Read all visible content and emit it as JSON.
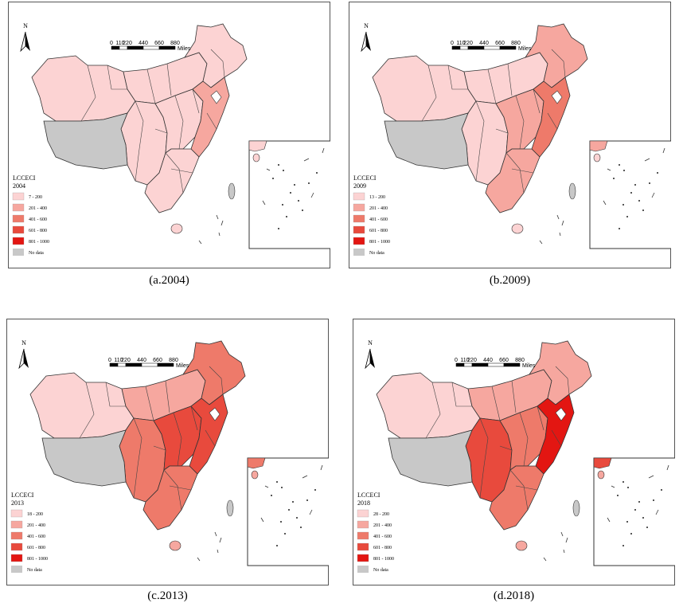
{
  "legend": {
    "title": "LCCECI",
    "classes": [
      {
        "color": "#fcd3d3"
      },
      {
        "label": "201 - 400",
        "color": "#f6a79f"
      },
      {
        "label": "401 - 600",
        "color": "#ee7a6a"
      },
      {
        "label": "601 - 800",
        "color": "#e84a3d"
      },
      {
        "label": "801 - 1000",
        "color": "#e31612"
      }
    ],
    "no_data_label": "No data",
    "no_data_color": "#c8c8c8"
  },
  "compass_label": "N",
  "scale_bar": {
    "ticks": [
      "0",
      "110",
      "220",
      "440",
      "660",
      "880"
    ],
    "unit": "Miles"
  },
  "panels": [
    {
      "year": "2004",
      "first_class_label": "7 - 200",
      "caption": "(a.2004)",
      "region_levels": {
        "east_coast": 2,
        "central": 1,
        "south": 1,
        "north": 1,
        "northeast": 1,
        "southwest": 1,
        "inset": 1
      }
    },
    {
      "year": "2009",
      "first_class_label": "13 - 200",
      "caption": "(b.2009)",
      "region_levels": {
        "east_coast": 3,
        "central": 2,
        "south": 2,
        "north": 1,
        "northeast": 2,
        "southwest": 1,
        "inset": 2
      }
    },
    {
      "year": "2013",
      "first_class_label": "18 - 200",
      "caption": "(c.2013)",
      "region_levels": {
        "east_coast": 4,
        "central": 4,
        "south": 3,
        "north": 2,
        "northeast": 3,
        "southwest": 3,
        "inset": 3
      }
    },
    {
      "year": "2018",
      "first_class_label": "28 - 200",
      "caption": "(d.2018)",
      "region_levels": {
        "east_coast": 5,
        "central": 3,
        "south": 3,
        "north": 2,
        "northeast": 2,
        "southwest": 4,
        "inset": 4
      }
    }
  ]
}
